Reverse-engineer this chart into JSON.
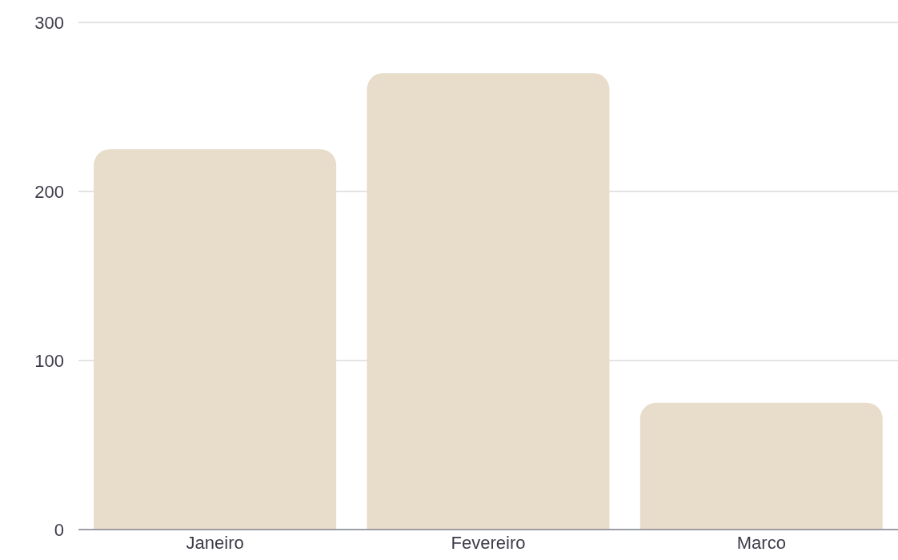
{
  "chart_data": {
    "type": "bar",
    "categories": [
      "Janeiro",
      "Fevereiro",
      "Marco"
    ],
    "values": [
      225,
      270,
      75
    ],
    "color": "#e8dccb",
    "ylim": [
      0,
      300
    ],
    "yticks": [
      0,
      100,
      200,
      300
    ],
    "grid": "y"
  }
}
